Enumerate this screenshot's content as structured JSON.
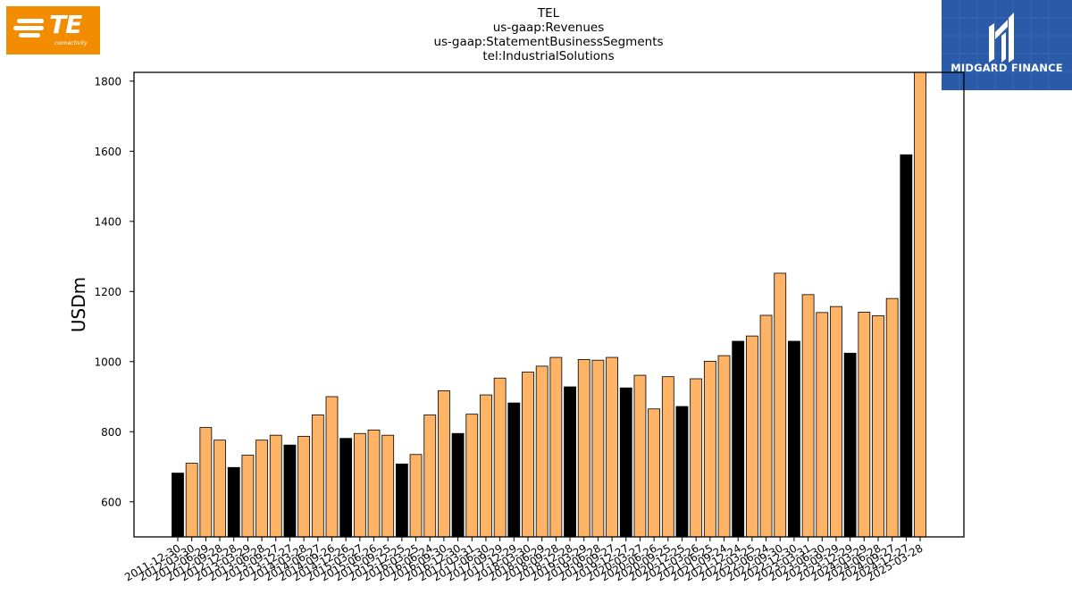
{
  "logos": {
    "left": {
      "text": "TE",
      "subtext": "connectivity",
      "color": "#f28c00"
    },
    "right": {
      "text": "MIDGARD FINANCE",
      "color": "#2a5aa8"
    }
  },
  "chart_data": {
    "type": "bar",
    "title_lines": [
      "TEL",
      "us-gaap:Revenues",
      "us-gaap:StatementBusinessSegments",
      "tel:IndustrialSolutions"
    ],
    "ylabel": "USDm",
    "xlabel": "",
    "ylim": [
      500,
      1825
    ],
    "yticks": [
      600,
      800,
      1000,
      1200,
      1400,
      1600,
      1800
    ],
    "colors": {
      "fiscal_year_end": "#000000",
      "quarter": "#ffb366"
    },
    "grid": false,
    "categories": [
      "2011-12-30",
      "2012-03-30",
      "2012-06-29",
      "2012-09-28",
      "2012-12-28",
      "2013-03-29",
      "2013-06-28",
      "2013-09-27",
      "2013-12-27",
      "2014-03-28",
      "2014-06-27",
      "2014-09-26",
      "2014-12-26",
      "2015-03-27",
      "2015-06-26",
      "2015-09-25",
      "2015-12-25",
      "2016-03-25",
      "2016-06-24",
      "2016-09-30",
      "2016-12-30",
      "2017-03-31",
      "2017-06-30",
      "2017-09-29",
      "2017-12-29",
      "2018-03-30",
      "2018-06-29",
      "2018-09-28",
      "2018-12-28",
      "2019-03-29",
      "2019-06-28",
      "2019-09-27",
      "2019-12-27",
      "2020-03-27",
      "2020-06-26",
      "2020-09-25",
      "2020-12-25",
      "2021-03-26",
      "2021-06-25",
      "2021-09-24",
      "2021-12-24",
      "2022-03-25",
      "2022-06-24",
      "2022-09-30",
      "2022-12-30",
      "2023-03-31",
      "2023-06-30",
      "2023-09-29",
      "2023-12-29",
      "2024-03-29",
      "2024-06-28",
      "2024-09-27",
      "2024-12-27",
      "2025-03-28"
    ],
    "values": [
      682,
      710,
      812,
      776,
      698,
      733,
      776,
      790,
      762,
      787,
      848,
      900,
      781,
      795,
      805,
      790,
      708,
      735,
      848,
      917,
      795,
      850,
      905,
      953,
      882,
      970,
      987,
      1012,
      928,
      1006,
      1004,
      1012,
      925,
      961,
      865,
      957,
      872,
      951,
      1001,
      1017,
      1058,
      1073,
      1132,
      1252,
      1058,
      1191,
      1140,
      1157,
      1024,
      1141,
      1131,
      1180,
      1590,
      1830
    ],
    "highlight": [
      true,
      false,
      false,
      false,
      true,
      false,
      false,
      false,
      true,
      false,
      false,
      false,
      true,
      false,
      false,
      false,
      true,
      false,
      false,
      false,
      true,
      false,
      false,
      false,
      true,
      false,
      false,
      false,
      true,
      false,
      false,
      false,
      true,
      false,
      false,
      false,
      true,
      false,
      false,
      false,
      true,
      false,
      false,
      false,
      true,
      false,
      false,
      false,
      true,
      false,
      false,
      false,
      true,
      false
    ]
  }
}
